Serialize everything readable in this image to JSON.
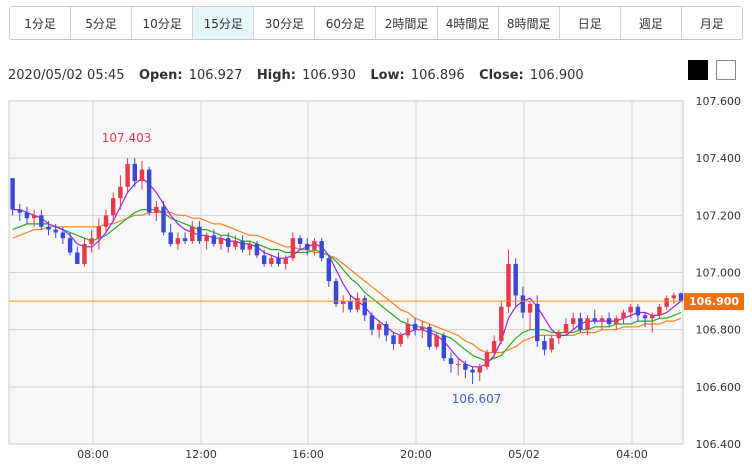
{
  "timeframes": [
    {
      "label": "1分足",
      "active": false
    },
    {
      "label": "5分足",
      "active": false
    },
    {
      "label": "10分足",
      "active": false
    },
    {
      "label": "15分足",
      "active": true
    },
    {
      "label": "30分足",
      "active": false
    },
    {
      "label": "60分足",
      "active": false
    },
    {
      "label": "2時間足",
      "active": false
    },
    {
      "label": "4時間足",
      "active": false
    },
    {
      "label": "8時間足",
      "active": false
    },
    {
      "label": "日足",
      "active": false
    },
    {
      "label": "週足",
      "active": false
    },
    {
      "label": "月足",
      "active": false
    }
  ],
  "info": {
    "datetime": "2020/05/02 05:45",
    "open_label": "Open:",
    "open": "106.927",
    "high_label": "High:",
    "high": "106.930",
    "low_label": "Low:",
    "low": "106.896",
    "close_label": "Close:",
    "close": "106.900"
  },
  "colors": {
    "up": "#e8394a",
    "down": "#3a48d6",
    "ma_short": "#a020f0",
    "ma_mid": "#20b020",
    "ma_long": "#ff7f20",
    "price_line": "#ff8c1a",
    "price_tag": "#f07010",
    "high_annotation": "#e8394a",
    "low_annotation": "#4060c0"
  },
  "chart_data": {
    "type": "candlestick",
    "y_ticks": [
      "107.600",
      "107.400",
      "107.200",
      "107.000",
      "106.800",
      "106.600",
      "106.400"
    ],
    "ylim": [
      106.4,
      107.6
    ],
    "x_ticks": [
      "08:00",
      "12:00",
      "16:00",
      "20:00",
      "05/02",
      "04:00"
    ],
    "current_price": "106.900",
    "annotations": {
      "high": "107.403",
      "low": "106.607"
    },
    "candles": [
      [
        107.33,
        107.33,
        107.2,
        107.22
      ],
      [
        107.22,
        107.24,
        107.18,
        107.21
      ],
      [
        107.21,
        107.23,
        107.17,
        107.19
      ],
      [
        107.19,
        107.22,
        107.16,
        107.2
      ],
      [
        107.2,
        107.22,
        107.15,
        107.16
      ],
      [
        107.16,
        107.18,
        107.13,
        107.15
      ],
      [
        107.15,
        107.17,
        107.12,
        107.14
      ],
      [
        107.14,
        107.16,
        107.1,
        107.12
      ],
      [
        107.12,
        107.14,
        107.06,
        107.07
      ],
      [
        107.07,
        107.09,
        107.03,
        107.03
      ],
      [
        107.03,
        107.12,
        107.02,
        107.1
      ],
      [
        107.1,
        107.15,
        107.07,
        107.12
      ],
      [
        107.12,
        107.19,
        107.08,
        107.16
      ],
      [
        107.16,
        107.22,
        107.14,
        107.2
      ],
      [
        107.2,
        107.28,
        107.18,
        107.26
      ],
      [
        107.26,
        107.34,
        107.22,
        107.3
      ],
      [
        107.3,
        107.4,
        107.28,
        107.38
      ],
      [
        107.38,
        107.4,
        107.3,
        107.32
      ],
      [
        107.32,
        107.39,
        107.29,
        107.36
      ],
      [
        107.36,
        107.37,
        107.2,
        107.21
      ],
      [
        107.21,
        107.25,
        107.18,
        107.23
      ],
      [
        107.23,
        107.25,
        107.13,
        107.14
      ],
      [
        107.14,
        107.17,
        107.09,
        107.1
      ],
      [
        107.1,
        107.14,
        107.08,
        107.12
      ],
      [
        107.12,
        107.14,
        107.1,
        107.11
      ],
      [
        107.11,
        107.18,
        107.1,
        107.16
      ],
      [
        107.16,
        107.18,
        107.1,
        107.11
      ],
      [
        107.11,
        107.14,
        107.08,
        107.13
      ],
      [
        107.13,
        107.15,
        107.09,
        107.1
      ],
      [
        107.1,
        107.13,
        107.08,
        107.12
      ],
      [
        107.12,
        107.14,
        107.07,
        107.09
      ],
      [
        107.09,
        107.13,
        107.08,
        107.11
      ],
      [
        107.11,
        107.13,
        107.07,
        107.08
      ],
      [
        107.08,
        107.11,
        107.06,
        107.1
      ],
      [
        107.1,
        107.11,
        107.05,
        107.06
      ],
      [
        107.06,
        107.08,
        107.02,
        107.03
      ],
      [
        107.03,
        107.06,
        107.02,
        107.05
      ],
      [
        107.05,
        107.07,
        107.02,
        107.03
      ],
      [
        107.03,
        107.06,
        107.01,
        107.05
      ],
      [
        107.05,
        107.14,
        107.04,
        107.12
      ],
      [
        107.12,
        107.13,
        107.08,
        107.1
      ],
      [
        107.1,
        107.12,
        107.06,
        107.08
      ],
      [
        107.08,
        107.12,
        107.06,
        107.11
      ],
      [
        107.11,
        107.12,
        107.04,
        107.05
      ],
      [
        107.05,
        107.06,
        106.95,
        106.97
      ],
      [
        106.97,
        106.98,
        106.88,
        106.89
      ],
      [
        106.89,
        106.92,
        106.86,
        106.9
      ],
      [
        106.9,
        106.92,
        106.86,
        106.87
      ],
      [
        106.87,
        106.93,
        106.86,
        106.91
      ],
      [
        106.91,
        106.92,
        106.83,
        106.85
      ],
      [
        106.85,
        106.86,
        106.78,
        106.8
      ],
      [
        106.8,
        106.83,
        106.77,
        106.82
      ],
      [
        106.82,
        106.83,
        106.76,
        106.78
      ],
      [
        106.78,
        106.79,
        106.73,
        106.75
      ],
      [
        106.75,
        106.79,
        106.74,
        106.78
      ],
      [
        106.78,
        106.84,
        106.77,
        106.82
      ],
      [
        106.82,
        106.84,
        106.78,
        106.8
      ],
      [
        106.8,
        106.83,
        106.77,
        106.81
      ],
      [
        106.81,
        106.82,
        106.73,
        106.74
      ],
      [
        106.74,
        106.79,
        106.73,
        106.78
      ],
      [
        106.78,
        106.79,
        106.69,
        106.7
      ],
      [
        106.7,
        106.72,
        106.65,
        106.68
      ],
      [
        106.68,
        106.7,
        106.64,
        106.68
      ],
      [
        106.68,
        106.69,
        106.63,
        106.66
      ],
      [
        106.66,
        106.67,
        106.61,
        106.65
      ],
      [
        106.65,
        106.68,
        106.62,
        106.67
      ],
      [
        106.67,
        106.73,
        106.66,
        106.72
      ],
      [
        106.72,
        106.78,
        106.7,
        106.76
      ],
      [
        106.76,
        106.9,
        106.75,
        106.88
      ],
      [
        106.88,
        107.08,
        106.86,
        107.03
      ],
      [
        107.03,
        107.05,
        106.88,
        106.92
      ],
      [
        106.92,
        106.95,
        106.84,
        106.86
      ],
      [
        106.86,
        106.9,
        106.8,
        106.89
      ],
      [
        106.89,
        106.92,
        106.74,
        106.76
      ],
      [
        106.76,
        106.78,
        106.71,
        106.73
      ],
      [
        106.73,
        106.78,
        106.72,
        106.77
      ],
      [
        106.77,
        106.8,
        106.75,
        106.79
      ],
      [
        106.79,
        106.84,
        106.78,
        106.82
      ],
      [
        106.82,
        106.86,
        106.8,
        106.84
      ],
      [
        106.84,
        106.86,
        106.79,
        106.8
      ],
      [
        106.8,
        106.85,
        106.78,
        106.84
      ],
      [
        106.84,
        106.87,
        106.82,
        106.83
      ],
      [
        106.83,
        106.85,
        106.8,
        106.84
      ],
      [
        106.84,
        106.86,
        106.81,
        106.82
      ],
      [
        106.82,
        106.85,
        106.8,
        106.84
      ],
      [
        106.84,
        106.87,
        106.82,
        106.86
      ],
      [
        106.86,
        106.89,
        106.84,
        106.88
      ],
      [
        106.88,
        106.89,
        106.83,
        106.85
      ],
      [
        106.85,
        106.86,
        106.81,
        106.84
      ],
      [
        106.84,
        106.86,
        106.79,
        106.85
      ],
      [
        106.85,
        106.89,
        106.84,
        106.88
      ],
      [
        106.88,
        106.92,
        106.87,
        106.91
      ],
      [
        106.91,
        106.93,
        106.89,
        106.92
      ],
      [
        106.927,
        106.93,
        106.896,
        106.9
      ]
    ],
    "ma_short": [
      107.22,
      107.22,
      107.21,
      107.2,
      107.19,
      107.17,
      107.16,
      107.15,
      107.13,
      107.1,
      107.09,
      107.09,
      107.11,
      107.14,
      107.18,
      107.23,
      107.28,
      107.31,
      107.33,
      107.31,
      107.28,
      107.24,
      107.2,
      107.17,
      107.15,
      107.14,
      107.13,
      107.13,
      107.12,
      107.12,
      107.11,
      107.11,
      107.1,
      107.1,
      107.09,
      107.07,
      107.06,
      107.05,
      107.05,
      107.06,
      107.08,
      107.09,
      107.1,
      107.09,
      107.06,
      107.01,
      106.96,
      106.92,
      106.9,
      106.88,
      106.85,
      106.83,
      106.81,
      106.79,
      106.78,
      106.79,
      106.8,
      106.8,
      106.79,
      106.78,
      106.76,
      106.73,
      106.7,
      106.68,
      106.67,
      106.67,
      106.68,
      106.71,
      106.76,
      106.84,
      106.88,
      106.9,
      106.91,
      106.88,
      106.84,
      106.8,
      106.78,
      106.78,
      106.8,
      106.82,
      106.83,
      106.83,
      106.83,
      106.83,
      106.83,
      106.84,
      106.85,
      106.86,
      106.86,
      106.85,
      106.85,
      106.86,
      106.88,
      106.9
    ],
    "ma_mid": [
      107.15,
      107.16,
      107.17,
      107.17,
      107.17,
      107.17,
      107.16,
      107.15,
      107.14,
      107.13,
      107.12,
      107.11,
      107.12,
      107.13,
      107.15,
      107.17,
      107.19,
      107.21,
      107.22,
      107.22,
      107.22,
      107.21,
      107.19,
      107.18,
      107.17,
      107.16,
      107.15,
      107.15,
      107.14,
      107.13,
      107.13,
      107.12,
      107.11,
      107.11,
      107.1,
      107.09,
      107.08,
      107.08,
      107.07,
      107.07,
      107.07,
      107.07,
      107.08,
      107.07,
      107.06,
      107.04,
      107.01,
      106.98,
      106.96,
      106.93,
      106.91,
      106.89,
      106.87,
      106.85,
      106.83,
      106.82,
      106.81,
      106.81,
      106.8,
      106.79,
      106.78,
      106.77,
      106.75,
      106.73,
      106.71,
      106.7,
      106.69,
      106.7,
      106.71,
      106.74,
      106.77,
      106.79,
      106.8,
      106.8,
      106.8,
      106.79,
      106.79,
      106.79,
      106.79,
      106.8,
      106.8,
      106.81,
      106.81,
      106.81,
      106.82,
      106.82,
      106.82,
      106.83,
      106.83,
      106.83,
      106.84,
      106.84,
      106.85,
      106.86
    ],
    "ma_long": [
      107.12,
      107.13,
      107.14,
      107.15,
      107.15,
      107.16,
      107.16,
      107.16,
      107.16,
      107.16,
      107.16,
      107.16,
      107.16,
      107.17,
      107.17,
      107.18,
      107.19,
      107.2,
      107.2,
      107.21,
      107.21,
      107.21,
      107.21,
      107.2,
      107.2,
      107.19,
      107.19,
      107.18,
      107.17,
      107.17,
      107.16,
      107.15,
      107.14,
      107.13,
      107.13,
      107.12,
      107.11,
      107.1,
      107.09,
      107.09,
      107.08,
      107.08,
      107.07,
      107.07,
      107.06,
      107.05,
      107.03,
      107.01,
      106.99,
      106.97,
      106.95,
      106.93,
      106.91,
      106.89,
      106.87,
      106.86,
      106.84,
      106.83,
      106.82,
      106.81,
      106.8,
      106.79,
      106.78,
      106.76,
      106.75,
      106.73,
      106.72,
      106.72,
      106.72,
      106.73,
      106.74,
      106.76,
      106.77,
      106.78,
      106.78,
      106.78,
      106.78,
      106.78,
      106.78,
      106.79,
      106.79,
      106.79,
      106.8,
      106.8,
      106.8,
      106.81,
      106.81,
      106.81,
      106.82,
      106.82,
      106.82,
      106.83,
      106.83,
      106.84
    ]
  }
}
